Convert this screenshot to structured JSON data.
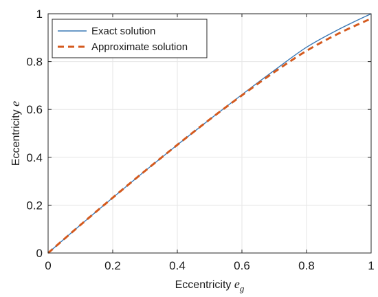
{
  "chart_data": {
    "type": "line",
    "xlabel": {
      "text": "Eccentricity ",
      "symbol": "e",
      "subscript": "g"
    },
    "ylabel": {
      "text": "Eccentricity ",
      "symbol": "e"
    },
    "xlim": [
      0,
      1
    ],
    "ylim": [
      0,
      1
    ],
    "xticks": [
      "0",
      "0.2",
      "0.4",
      "0.6",
      "0.8",
      "1"
    ],
    "yticks": [
      "0",
      "0.2",
      "0.4",
      "0.6",
      "0.8",
      "1"
    ],
    "grid": true,
    "legend_position": "top-left",
    "series": [
      {
        "name": "Exact solution",
        "color": "#3a78b5",
        "style": "solid",
        "x": [
          0,
          0.1,
          0.2,
          0.3,
          0.4,
          0.5,
          0.6,
          0.7,
          0.8,
          0.9,
          1.0
        ],
        "y": [
          0,
          0.117,
          0.231,
          0.343,
          0.452,
          0.558,
          0.662,
          0.763,
          0.86,
          0.935,
          1.0
        ]
      },
      {
        "name": "Approximate solution",
        "color": "#d45a1e",
        "style": "dashed",
        "x": [
          0,
          0.1,
          0.2,
          0.3,
          0.4,
          0.5,
          0.6,
          0.7,
          0.8,
          0.9,
          1.0
        ],
        "y": [
          0,
          0.117,
          0.231,
          0.343,
          0.452,
          0.558,
          0.659,
          0.756,
          0.845,
          0.918,
          0.98
        ]
      }
    ]
  }
}
